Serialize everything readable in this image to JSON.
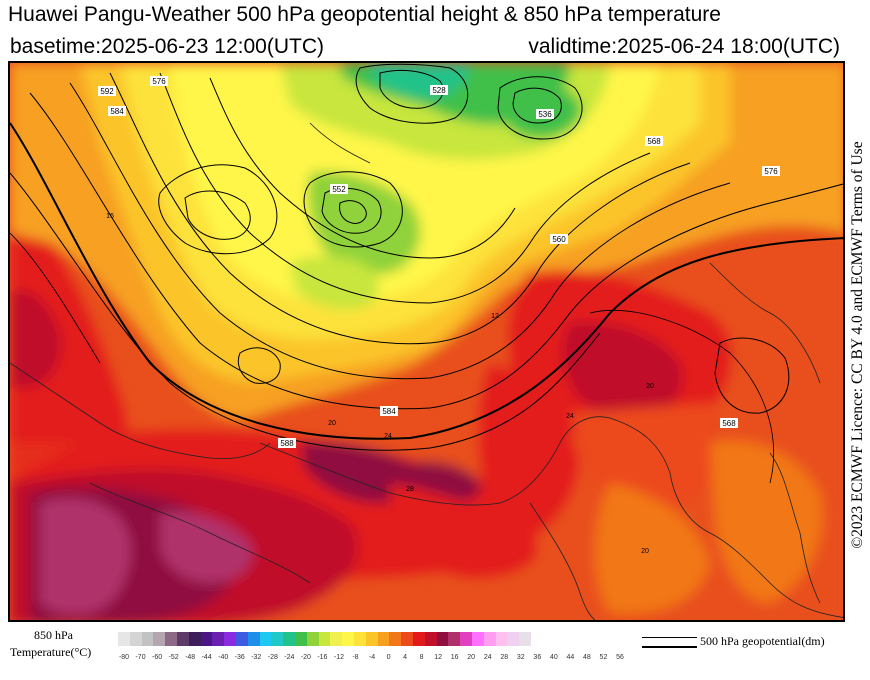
{
  "header": {
    "title": "Huawei Pangu-Weather 500 hPa geopotential height & 850 hPa temperature",
    "basetime": "basetime:2025-06-23 12:00(UTC)",
    "validtime": "validtime:2025-06-24 18:00(UTC)"
  },
  "license": "©2023 ECMWF Licence: CC BY 4.0 and ECMWF Terms of Use",
  "colorbar": {
    "label_line1": "850 hPa",
    "label_line2": "Temperature(°C)",
    "ticks": [
      "-80",
      "-70",
      "-60",
      "-52",
      "-48",
      "-44",
      "-40",
      "-36",
      "-32",
      "-28",
      "-24",
      "-20",
      "-16",
      "-12",
      "-8",
      "-4",
      "0",
      "4",
      "8",
      "12",
      "16",
      "20",
      "24",
      "28",
      "32",
      "36",
      "40",
      "44",
      "48",
      "52",
      "56"
    ],
    "colors": [
      "#e6e6e6",
      "#d4d4d4",
      "#c2c2c2",
      "#b3a6b0",
      "#8c6a86",
      "#5e3a68",
      "#3d1e5a",
      "#4b1787",
      "#6a1fb0",
      "#8a2be2",
      "#3c5be0",
      "#1e8fe8",
      "#1ec8f0",
      "#20c8c8",
      "#22c38a",
      "#40c04a",
      "#8fd23a",
      "#c8e63c",
      "#f0f050",
      "#fff64a",
      "#fde23a",
      "#fbc52a",
      "#f7a020",
      "#f27718",
      "#ec4a1a",
      "#e31a1c",
      "#c0102a",
      "#8f1040",
      "#b0306a",
      "#e040c0",
      "#ff70ff",
      "#ff9ef0",
      "#ffc0f0",
      "#f0d0f0",
      "#e8e0e8"
    ]
  },
  "legend": {
    "label": "500 hPa geopotential(dm)"
  },
  "map": {
    "contour_labels": [
      "528",
      "536",
      "552",
      "560",
      "568",
      "576",
      "584",
      "588",
      "592",
      "576",
      "584",
      "568"
    ],
    "temperature_labels": [
      "12",
      "16",
      "20",
      "24",
      "28",
      "20",
      "24",
      "20"
    ]
  }
}
